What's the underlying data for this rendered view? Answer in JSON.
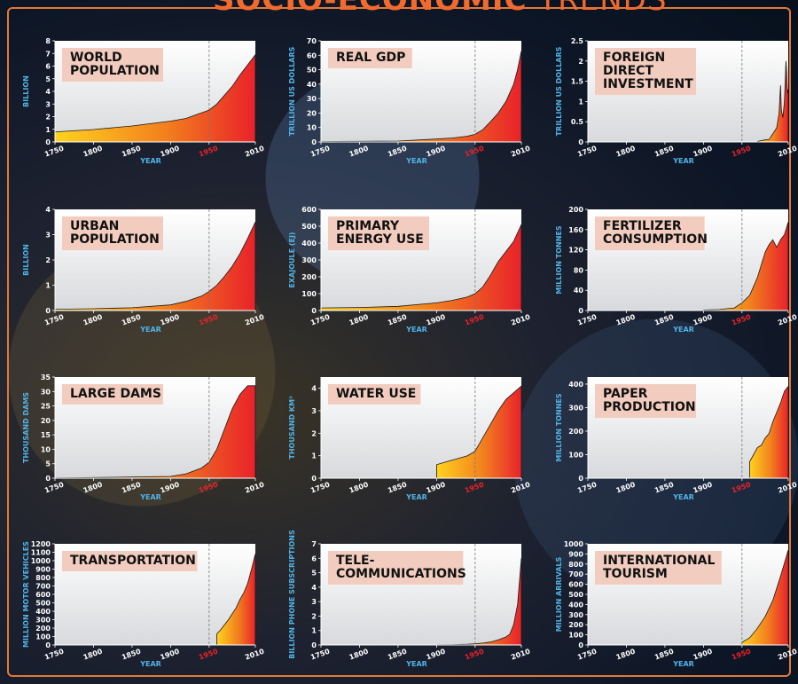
{
  "page": {
    "title_bold": "SOCIO-ECONOMIC",
    "title_light": "TRENDS"
  },
  "colors": {
    "accent": "#f26a2e",
    "label_box": "#f2cdbf",
    "fill_start": "#ffd21f",
    "fill_end": "#e8222a",
    "axis_label": "#4fb4e8",
    "year_marker": "#e8232a"
  },
  "x_ticks": [
    "1750",
    "1800",
    "1850",
    "1900",
    "1950",
    "2010"
  ],
  "x_label": "YEAR",
  "chart_data": [
    {
      "type": "area",
      "title": "WORLD POPULATION",
      "title_lines": [
        "WORLD",
        "POPULATION"
      ],
      "ylabel": "BILLION",
      "ylim": [
        0,
        8
      ],
      "yticks": [
        0,
        1,
        2,
        3,
        4,
        5,
        6,
        7,
        8
      ],
      "x": [
        1750,
        1800,
        1850,
        1900,
        1920,
        1940,
        1950,
        1960,
        1970,
        1980,
        1990,
        2000,
        2010
      ],
      "y": [
        0.79,
        0.98,
        1.26,
        1.65,
        1.86,
        2.3,
        2.52,
        3.0,
        3.7,
        4.4,
        5.3,
        6.1,
        6.9
      ],
      "marker_year": 1950,
      "grid": false
    },
    {
      "type": "area",
      "title": "REAL GDP",
      "title_lines": [
        "REAL GDP"
      ],
      "ylabel": "TRILLION US DOLLARS",
      "ylim": [
        0,
        70
      ],
      "yticks": [
        0,
        10,
        20,
        30,
        40,
        50,
        60,
        70
      ],
      "x": [
        1750,
        1800,
        1850,
        1900,
        1920,
        1940,
        1950,
        1960,
        1970,
        1980,
        1990,
        2000,
        2005,
        2010
      ],
      "y": [
        0.3,
        0.4,
        0.6,
        2,
        2.7,
        4,
        5.3,
        8.5,
        14,
        20,
        28,
        40,
        50,
        63
      ],
      "marker_year": 1950,
      "grid": false
    },
    {
      "type": "area",
      "title": "FOREIGN DIRECT INVESTMENT",
      "title_lines": [
        "FOREIGN",
        "DIRECT",
        "INVESTMENT"
      ],
      "ylabel": "TRILLION US DOLLARS",
      "ylim": [
        0,
        2.5
      ],
      "yticks": [
        0,
        0.5,
        1.0,
        1.5,
        2.0,
        2.5
      ],
      "x": [
        1970,
        1980,
        1985,
        1990,
        1995,
        1998,
        2000,
        2001,
        2003,
        2005,
        2007,
        2008,
        2009,
        2010
      ],
      "y": [
        0.01,
        0.05,
        0.06,
        0.2,
        0.35,
        0.7,
        1.4,
        0.8,
        0.6,
        1.0,
        2.0,
        1.7,
        1.2,
        1.3
      ],
      "marker_year": 1950,
      "grid": false
    },
    {
      "type": "area",
      "title": "URBAN POPULATION",
      "title_lines": [
        "URBAN",
        "POPULATION"
      ],
      "ylabel": "BILLION",
      "ylim": [
        0,
        4
      ],
      "yticks": [
        0,
        1,
        2,
        3,
        4
      ],
      "x": [
        1750,
        1800,
        1850,
        1900,
        1920,
        1940,
        1950,
        1960,
        1970,
        1980,
        1990,
        2000,
        2010
      ],
      "y": [
        0.05,
        0.07,
        0.11,
        0.22,
        0.36,
        0.57,
        0.75,
        1.0,
        1.35,
        1.75,
        2.25,
        2.85,
        3.5
      ],
      "marker_year": 1950,
      "grid": false
    },
    {
      "type": "area",
      "title": "PRIMARY ENERGY USE",
      "title_lines": [
        "PRIMARY",
        "ENERGY USE"
      ],
      "ylabel": "EXAJOULE (EJ)",
      "ylim": [
        0,
        600
      ],
      "yticks": [
        0,
        100,
        200,
        300,
        400,
        500,
        600
      ],
      "x": [
        1750,
        1800,
        1850,
        1900,
        1920,
        1940,
        1950,
        1960,
        1970,
        1980,
        1990,
        2000,
        2010
      ],
      "y": [
        15,
        18,
        25,
        45,
        60,
        80,
        100,
        140,
        210,
        290,
        350,
        410,
        510
      ],
      "marker_year": 1950,
      "grid": false
    },
    {
      "type": "area",
      "title": "FERTILIZER CONSUMPTION",
      "title_lines": [
        "FERTILIZER",
        "CONSUMPTION"
      ],
      "ylabel": "MILLION TONNES",
      "ylim": [
        0,
        200
      ],
      "yticks": [
        0,
        40,
        80,
        120,
        160,
        200
      ],
      "x": [
        1900,
        1920,
        1940,
        1950,
        1960,
        1970,
        1980,
        1985,
        1990,
        1995,
        2000,
        2005,
        2010
      ],
      "y": [
        1,
        2,
        5,
        15,
        30,
        65,
        115,
        130,
        140,
        125,
        140,
        150,
        175
      ],
      "marker_year": 1950,
      "grid": false
    },
    {
      "type": "area",
      "title": "LARGE DAMS",
      "title_lines": [
        "LARGE DAMS"
      ],
      "ylabel": "THOUSAND DAMS",
      "ylim": [
        0,
        35
      ],
      "yticks": [
        0,
        5,
        10,
        15,
        20,
        25,
        30,
        35
      ],
      "x": [
        1750,
        1800,
        1850,
        1900,
        1920,
        1940,
        1950,
        1960,
        1970,
        1980,
        1990,
        2000,
        2010
      ],
      "y": [
        0.1,
        0.2,
        0.4,
        0.6,
        1.5,
        3.5,
        5.5,
        10,
        17,
        24,
        29,
        32,
        32
      ],
      "marker_year": 1950,
      "grid": false
    },
    {
      "type": "area",
      "title": "WATER USE",
      "title_lines": [
        "WATER USE"
      ],
      "ylabel": "THOUSAND KM³",
      "ylim": [
        0,
        4.5
      ],
      "yticks": [
        0,
        1,
        2,
        3,
        4
      ],
      "x": [
        1900,
        1920,
        1940,
        1950,
        1960,
        1970,
        1980,
        1990,
        2000,
        2010
      ],
      "y": [
        0.6,
        0.8,
        1.0,
        1.2,
        1.8,
        2.4,
        3.0,
        3.5,
        3.8,
        4.1
      ],
      "marker_year": 1950,
      "grid": false
    },
    {
      "type": "area",
      "title": "PAPER PRODUCTION",
      "title_lines": [
        "PAPER",
        "PRODUCTION"
      ],
      "ylabel": "MILLION TONNES",
      "ylim": [
        0,
        430
      ],
      "yticks": [
        0,
        100,
        200,
        300,
        400
      ],
      "x": [
        1960,
        1965,
        1970,
        1975,
        1980,
        1985,
        1990,
        1995,
        2000,
        2005,
        2010
      ],
      "y": [
        70,
        100,
        130,
        140,
        170,
        190,
        240,
        280,
        320,
        370,
        390
      ],
      "marker_year": 1950,
      "grid": false
    },
    {
      "type": "area",
      "title": "TRANSPORTATION",
      "title_lines": [
        "TRANSPORTATION"
      ],
      "ylabel": "MILLION MOTOR VEHICLES",
      "ylim": [
        0,
        1200
      ],
      "yticks": [
        0,
        100,
        200,
        300,
        400,
        500,
        600,
        700,
        800,
        900,
        1000,
        1100,
        1200
      ],
      "x": [
        1960,
        1965,
        1970,
        1975,
        1980,
        1985,
        1990,
        1995,
        2000,
        2005,
        2010
      ],
      "y": [
        130,
        180,
        240,
        300,
        370,
        440,
        540,
        620,
        730,
        900,
        1080
      ],
      "marker_year": 1950,
      "grid": false
    },
    {
      "type": "area",
      "title": "TELE-COMMUNICATIONS",
      "title_lines": [
        "TELE-",
        "COMMUNICATIONS"
      ],
      "ylabel": "BILLION PHONE SUBSCRIPTIONS",
      "ylim": [
        0,
        7
      ],
      "yticks": [
        0,
        1,
        2,
        3,
        4,
        5,
        6,
        7
      ],
      "x": [
        1900,
        1920,
        1940,
        1950,
        1960,
        1970,
        1980,
        1990,
        1995,
        2000,
        2005,
        2010
      ],
      "y": [
        0.01,
        0.02,
        0.05,
        0.08,
        0.13,
        0.2,
        0.35,
        0.55,
        0.75,
        1.4,
        2.8,
        6.0
      ],
      "marker_year": 1950,
      "grid": false
    },
    {
      "type": "area",
      "title": "INTERNATIONAL TOURISM",
      "title_lines": [
        "INTERNATIONAL",
        "TOURISM"
      ],
      "ylabel": "MILLION ARRIVALS",
      "ylim": [
        0,
        1000
      ],
      "yticks": [
        0,
        100,
        200,
        300,
        400,
        500,
        600,
        700,
        800,
        900,
        1000
      ],
      "x": [
        1950,
        1960,
        1970,
        1980,
        1990,
        2000,
        2005,
        2010
      ],
      "y": [
        25,
        70,
        165,
        280,
        440,
        680,
        810,
        940
      ],
      "marker_year": 1950,
      "grid": false
    }
  ]
}
